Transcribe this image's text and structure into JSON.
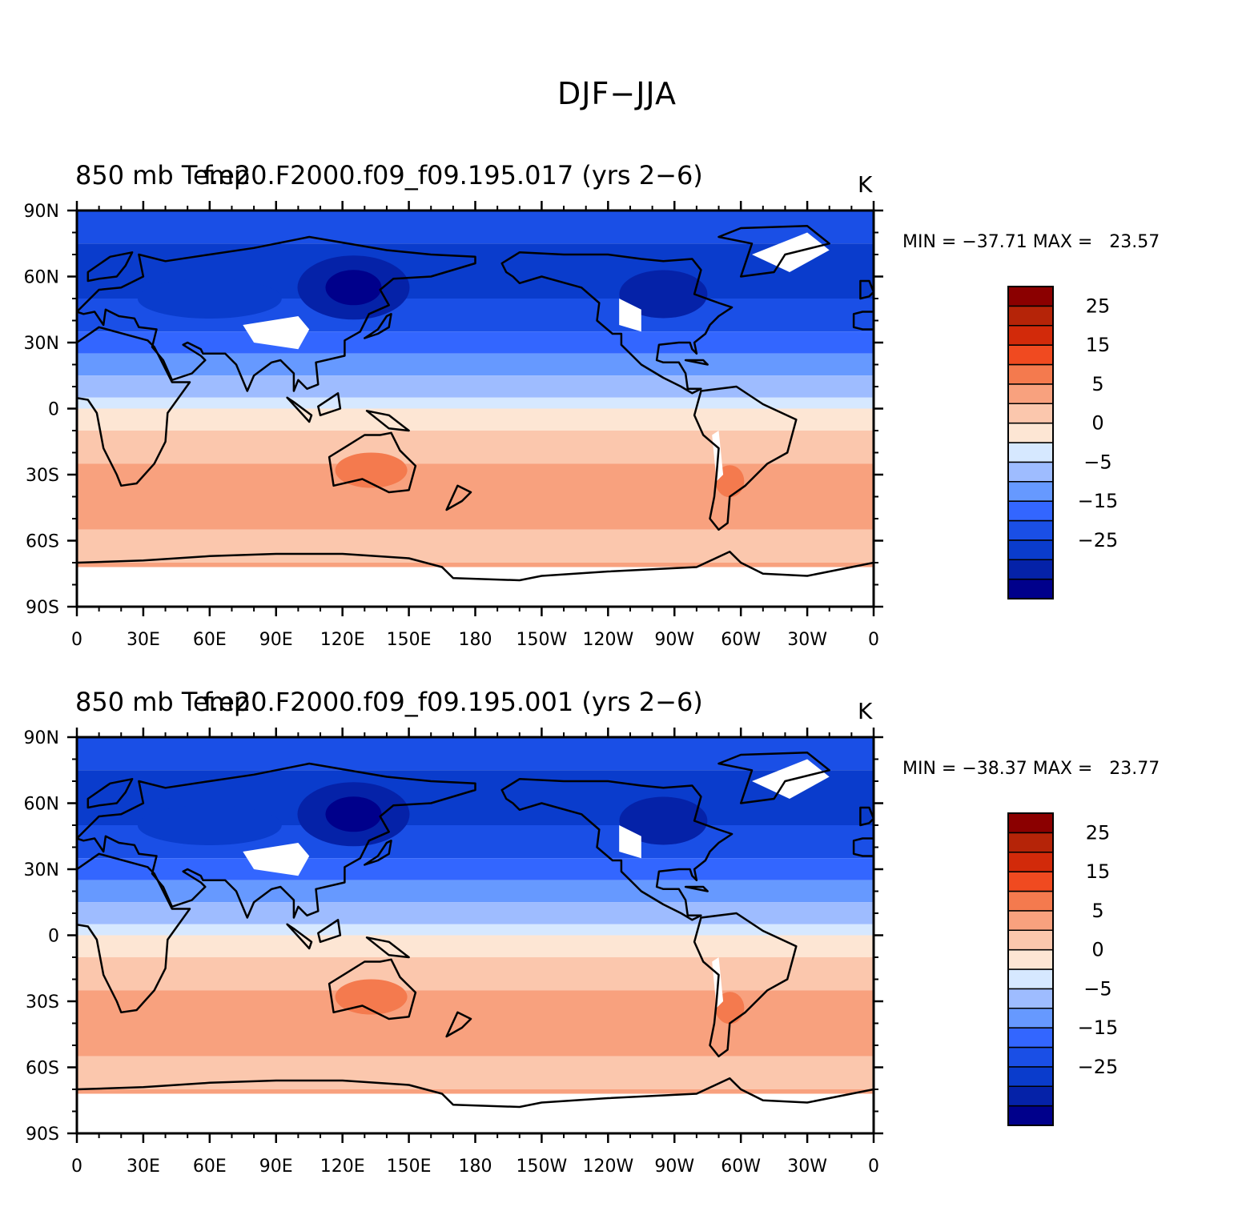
{
  "figure": {
    "title": "DJF−JJA"
  },
  "panels": [
    {
      "variable_label": "850 mb Temp",
      "case_label": "f.e20.F2000.f09_f09.195.017 (yrs 2−6)",
      "unit": "K",
      "min_label": "MIN =",
      "min_value": "−37.71",
      "max_label": "MAX =",
      "max_value": "23.57"
    },
    {
      "variable_label": "850 mb Temp",
      "case_label": "f.e20.F2000.f09_f09.195.001 (yrs 2−6)",
      "unit": "K",
      "min_label": "MIN =",
      "min_value": "−38.37",
      "max_label": "MAX =",
      "max_value": "23.77"
    }
  ],
  "map": {
    "lat_ticks": [
      "90N",
      "60N",
      "30N",
      "0",
      "30S",
      "60S",
      "90S"
    ],
    "lon_ticks": [
      "0",
      "30E",
      "60E",
      "90E",
      "120E",
      "150E",
      "180",
      "150W",
      "120W",
      "90W",
      "60W",
      "30W",
      "0"
    ]
  },
  "colorbar": {
    "colors": [
      "#00008b",
      "#0522a8",
      "#0a3ccc",
      "#1a4fe6",
      "#3366ff",
      "#6699ff",
      "#9ebcff",
      "#d6e8ff",
      "#fde6d4",
      "#fbc7ad",
      "#f8a17e",
      "#f47a4e",
      "#f04a20",
      "#d22a0a",
      "#b52408",
      "#8b0000"
    ],
    "labels": [
      "−25",
      "−15",
      "−5",
      "0",
      "5",
      "15",
      "25"
    ]
  }
}
